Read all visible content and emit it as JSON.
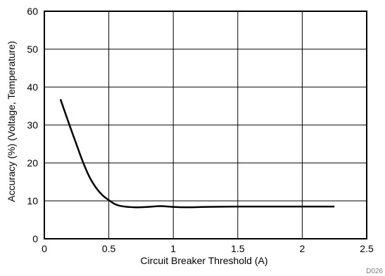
{
  "chart_data": {
    "type": "line",
    "title": "",
    "xlabel": "Circuit Breaker Threshold (A)",
    "ylabel": "Accuracy (%) (Voltage, Temperature)",
    "xlim": [
      0,
      2.5
    ],
    "ylim": [
      0,
      60
    ],
    "x_ticks": [
      "0",
      "0.5",
      "1",
      "1.5",
      "2",
      "2.5"
    ],
    "y_ticks": [
      "0",
      "10",
      "20",
      "30",
      "40",
      "50",
      "60"
    ],
    "grid": true,
    "legend": "none",
    "line_color": "#000000",
    "figure_code": "D026",
    "series": [
      {
        "x": [
          0.125,
          0.2,
          0.25,
          0.3,
          0.35,
          0.4,
          0.45,
          0.5,
          0.55,
          0.6,
          0.7,
          0.8,
          0.9,
          1.0,
          1.1,
          1.25,
          1.5,
          1.75,
          2.0,
          2.25
        ],
        "y": [
          36.8,
          29.5,
          24.8,
          20.2,
          16.3,
          13.5,
          11.5,
          10.2,
          9.1,
          8.6,
          8.3,
          8.4,
          8.6,
          8.4,
          8.3,
          8.4,
          8.5,
          8.5,
          8.5,
          8.5
        ]
      }
    ]
  }
}
